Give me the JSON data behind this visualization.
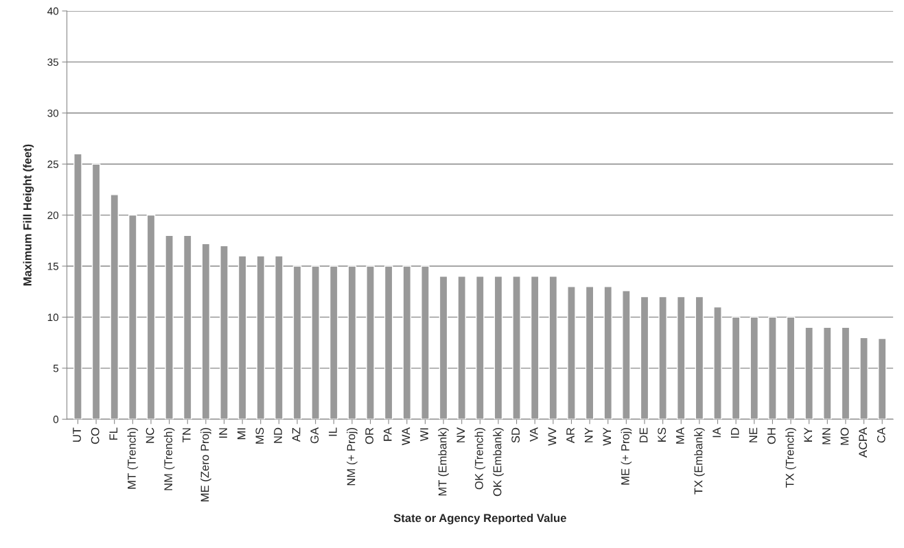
{
  "chart_data": {
    "type": "bar",
    "xlabel": "State or Agency Reported Value",
    "ylabel": "Maximum Fill Height (feet)",
    "categories": [
      "UT",
      "CO",
      "FL",
      "MT (Trench)",
      "NC",
      "NM (Trench)",
      "TN",
      "ME (Zero Proj)",
      "IN",
      "MI",
      "MS",
      "ND",
      "AZ",
      "GA",
      "IL",
      "NM (+ Proj)",
      "OR",
      "PA",
      "WA",
      "WI",
      "MT (Embank)",
      "NV",
      "OK (Trench)",
      "OK (Embank)",
      "SD",
      "VA",
      "WV",
      "AR",
      "NY",
      "WY",
      "ME (+ Proj)",
      "DE",
      "KS",
      "MA",
      "TX (Embank)",
      "IA",
      "ID",
      "NE",
      "OH",
      "TX (Trench)",
      "KY",
      "MN",
      "MO",
      "ACPA",
      "CA"
    ],
    "values": [
      26,
      25,
      22,
      20,
      20,
      18,
      18,
      17.2,
      17,
      16,
      16,
      16,
      15,
      15,
      15,
      15,
      15,
      15,
      15,
      15,
      14,
      14,
      14,
      14,
      14,
      14,
      14,
      13,
      13,
      13,
      12.6,
      12,
      12,
      12,
      12,
      11,
      10,
      10,
      10,
      10,
      9,
      9,
      9,
      8,
      7.9
    ],
    "color": "#999999",
    "ylim": [
      0,
      40
    ],
    "yticks": [
      0,
      5,
      10,
      15,
      20,
      25,
      30,
      35,
      40
    ],
    "grid": "y",
    "legend": false
  }
}
